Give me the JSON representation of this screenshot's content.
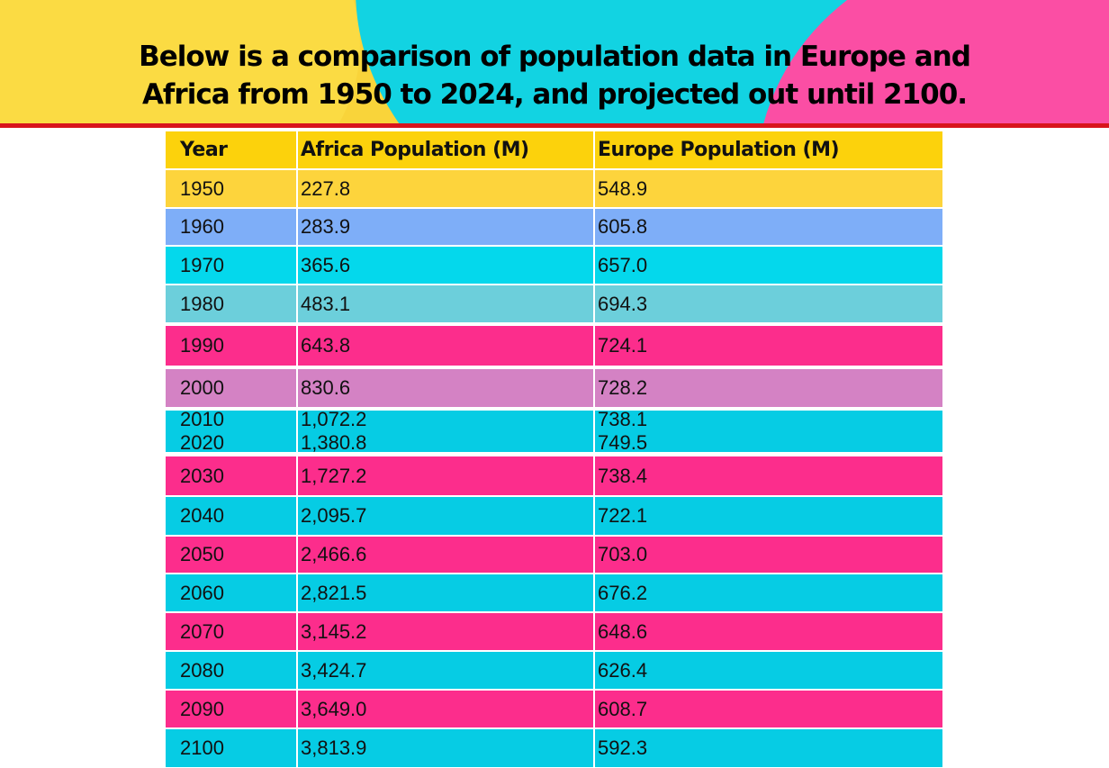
{
  "title_line1": "Below is a comparison of population data in Europe and",
  "title_line2": "Africa from 1950 to 2024, and projected out until 2100.",
  "table": {
    "headers": [
      "Year",
      "Africa Population (M)",
      "Europe Population (M)"
    ],
    "header_color": "#fcd20c",
    "rows": [
      {
        "year": "1950",
        "africa": "227.8",
        "europe": "548.9",
        "color": "#fdd43c"
      },
      {
        "year": "1960",
        "africa": "283.9",
        "europe": "605.8",
        "color": "#7eaef8"
      },
      {
        "year": "1970",
        "africa": "365.6",
        "europe": "657.0",
        "color": "#04d8ec"
      },
      {
        "year": "1980",
        "africa": "483.1",
        "europe": "694.3",
        "color": "#6ccfdb"
      },
      {
        "year": "1990",
        "africa": "643.8",
        "europe": "724.1",
        "color": "#fc2d8c"
      },
      {
        "year": "2000",
        "africa": "830.6",
        "europe": "728.2",
        "color": "#d482c4"
      },
      {
        "year": "2010",
        "africa": "1,072.2",
        "europe": "738.1",
        "year2": "2020",
        "africa2": "1,380.8",
        "europe2": "749.5",
        "color": "#06cce4"
      },
      {
        "year": "2030",
        "africa": "1,727.2",
        "europe": "738.4",
        "color": "#fc2d8c"
      },
      {
        "year": "2040",
        "africa": "2,095.7",
        "europe": "722.1",
        "color": "#06cce4"
      },
      {
        "year": "2050",
        "africa": "2,466.6",
        "europe": "703.0",
        "color": "#fc2d8c"
      },
      {
        "year": "2060",
        "africa": "2,821.5",
        "europe": "676.2",
        "color": "#06cce4"
      },
      {
        "year": "2070",
        "africa": "3,145.2",
        "europe": "648.6",
        "color": "#fc2d8c"
      },
      {
        "year": "2080",
        "africa": "3,424.7",
        "europe": "626.4",
        "color": "#06cce4"
      },
      {
        "year": "2090",
        "africa": "3,649.0",
        "europe": "608.7",
        "color": "#fc2d8c"
      },
      {
        "year": "2100",
        "africa": "3,813.9",
        "europe": "592.3",
        "color": "#06cce4"
      }
    ]
  }
}
